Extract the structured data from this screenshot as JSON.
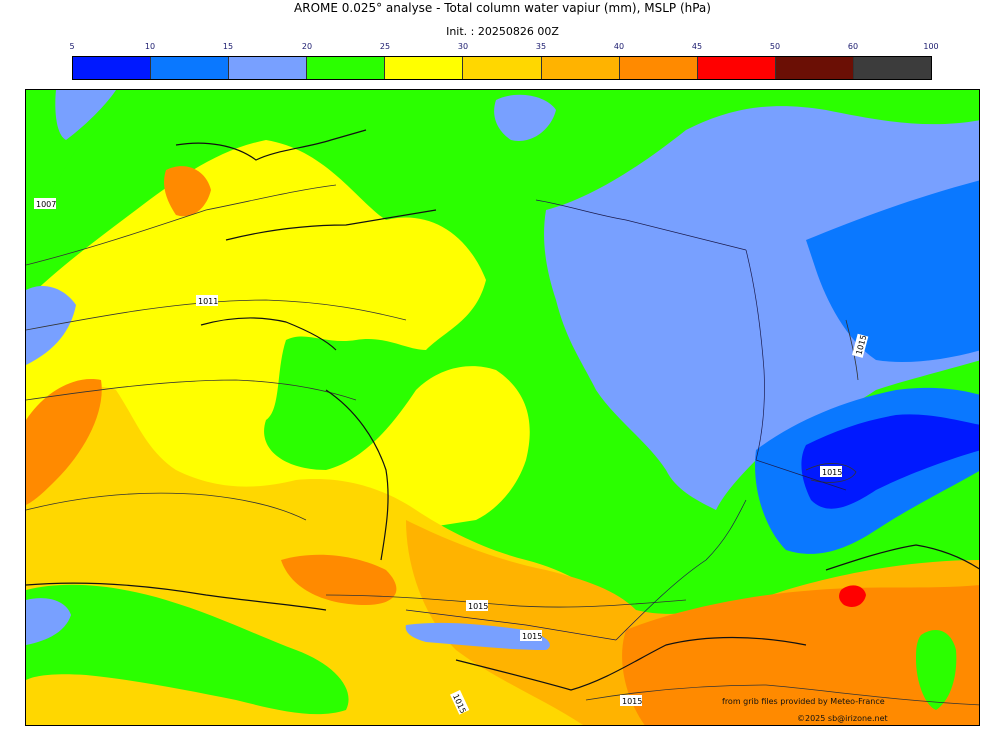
{
  "header": {
    "title": "AROME 0.025° analyse - Total column water vapiur (mm), MSLP (hPa)",
    "init": "Init. : 20250826 00Z"
  },
  "colorbar": {
    "ticks": [
      "5",
      "10",
      "15",
      "20",
      "25",
      "30",
      "35",
      "40",
      "45",
      "50",
      "60",
      "100"
    ],
    "colors": [
      "#0019ff",
      "#0a78ff",
      "#78a0ff",
      "#2bff00",
      "#ffff00",
      "#ffd700",
      "#ffb300",
      "#ff8a00",
      "#ff0000",
      "#6b0f05",
      "#3c3c3c"
    ]
  },
  "isobar_labels": [
    "1007",
    "1011",
    "1015",
    "1015",
    "1015",
    "1015",
    "1015",
    "1015"
  ],
  "credits": {
    "source": "from grib files provided by Meteo-France",
    "copyright": "©2025 sb@irizone.net"
  }
}
